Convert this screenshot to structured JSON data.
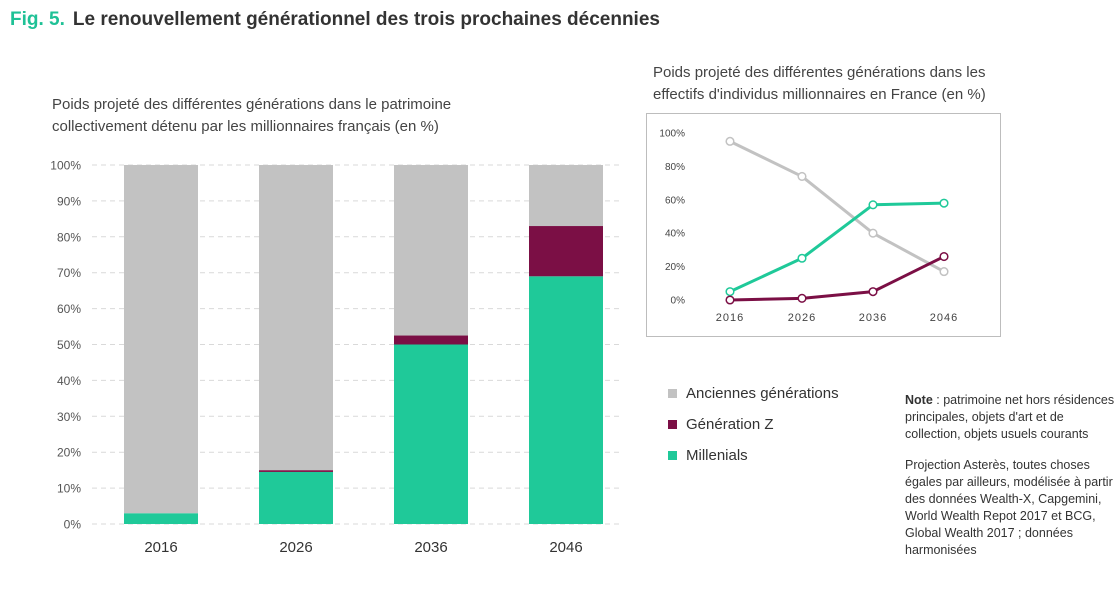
{
  "figure": {
    "number": "Fig. 5.",
    "title": "Le renouvellement générationnel des trois prochaines décennies"
  },
  "colors": {
    "anciennes": "#c2c2c2",
    "generation_z": "#7b0f45",
    "millenials": "#1fc999",
    "grid": "#d9d9d9"
  },
  "legend": [
    {
      "label": "Anciennes générations",
      "color": "#c2c2c2"
    },
    {
      "label": "Génération Z",
      "color": "#7b0f45"
    },
    {
      "label": "Millenials",
      "color": "#1fc999"
    }
  ],
  "note": {
    "label": "Note",
    "text": " : patrimoine net hors résidences principales, objets d'art et de collection, objets usuels courants",
    "source": "Projection Asterès, toutes choses égales par ailleurs, modélisée à partir des données Wealth-X, Capgemini, World Wealth Repot 2017 et BCG, Global Wealth 2017 ; données harmonisées"
  },
  "chart_data": [
    {
      "type": "bar",
      "stacked": true,
      "title": "Poids projeté des différentes générations dans le patrimoine\ncollectivement détenu par les millionnaires français (en %)",
      "categories": [
        "2016",
        "2026",
        "2036",
        "2046"
      ],
      "series": [
        {
          "name": "Millenials",
          "values": [
            3,
            14.5,
            50,
            69
          ]
        },
        {
          "name": "Génération Z",
          "values": [
            0,
            0.5,
            2.5,
            14
          ]
        },
        {
          "name": "Anciennes générations",
          "values": [
            97,
            85,
            47.5,
            17
          ]
        }
      ],
      "ylim": [
        0,
        100
      ],
      "yticks": [
        "0%",
        "10%",
        "20%",
        "30%",
        "40%",
        "50%",
        "60%",
        "70%",
        "80%",
        "90%",
        "100%"
      ],
      "grid": true
    },
    {
      "type": "line",
      "title": "Poids projeté des différentes générations dans les\neffectifs d'individus millionnaires en France (en %)",
      "categories": [
        "2016",
        "2026",
        "2036",
        "2046"
      ],
      "series": [
        {
          "name": "Anciennes générations",
          "values": [
            95,
            74,
            40,
            17
          ]
        },
        {
          "name": "Millenials",
          "values": [
            5,
            25,
            57,
            58
          ]
        },
        {
          "name": "Génération Z",
          "values": [
            0,
            1,
            5,
            26
          ]
        }
      ],
      "ylim": [
        0,
        100
      ],
      "yticks": [
        "0%",
        "20%",
        "40%",
        "60%",
        "80%",
        "100%"
      ],
      "grid": false
    }
  ]
}
